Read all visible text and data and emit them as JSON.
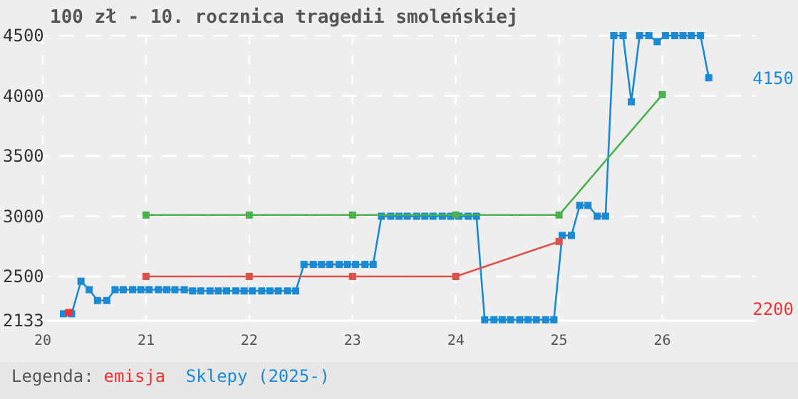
{
  "chart_data": {
    "type": "line",
    "title": "100 zł - 10. rocznica tragedii smoleńskiej",
    "legend_title": "Legenda:",
    "legend": "bottom",
    "grid": true,
    "marker": "square",
    "line_style": "solid",
    "xlim": [
      20,
      26.9
    ],
    "xticks": [
      20,
      21,
      22,
      23,
      24,
      25,
      26
    ],
    "ylim": [
      2133,
      4500
    ],
    "yticks": [
      2133,
      2500,
      3000,
      3500,
      4000,
      4500
    ],
    "annotations": [
      {
        "text": "4150",
        "x": 26.45,
        "y": 4150
      },
      "2200"
    ],
    "series": [
      {
        "name": "emisja",
        "color": "#ee3333",
        "x": [
          20.25
        ],
        "values": [
          2200
        ]
      },
      {
        "color": "#4cb050",
        "x": [
          21,
          22,
          23,
          24,
          25,
          26
        ],
        "values": [
          3010,
          3010,
          3010,
          3010,
          3010,
          4010
        ]
      },
      {
        "color": "#e0504a",
        "x": [
          21,
          22,
          23,
          24,
          25
        ],
        "values": [
          2500,
          2500,
          2500,
          2500,
          2790
        ]
      },
      {
        "name": "Sklepy (2025-)",
        "color": "#1a8ad4",
        "x": [
          20.2,
          20.28,
          20.37,
          20.45,
          20.53,
          20.62,
          20.7,
          20.78,
          20.87,
          20.95,
          21.03,
          21.12,
          21.2,
          21.28,
          21.37,
          21.45,
          21.53,
          21.62,
          21.7,
          21.78,
          21.87,
          21.95,
          22.03,
          22.12,
          22.2,
          22.28,
          22.37,
          22.45,
          22.53,
          22.62,
          22.7,
          22.78,
          22.87,
          22.95,
          23.03,
          23.12,
          23.2,
          23.28,
          23.37,
          23.45,
          23.53,
          23.62,
          23.7,
          23.78,
          23.87,
          23.95,
          24.03,
          24.12,
          24.2,
          24.28,
          24.37,
          24.45,
          24.53,
          24.62,
          24.7,
          24.78,
          24.87,
          24.95,
          25.03,
          25.12,
          25.2,
          25.28,
          25.37,
          25.45,
          25.53,
          25.62,
          25.7,
          25.78,
          25.87,
          25.95,
          26.03,
          26.12,
          26.2,
          26.28,
          26.37,
          26.45
        ],
        "values": [
          2190,
          2190,
          2460,
          2390,
          2300,
          2300,
          2390,
          2390,
          2390,
          2390,
          2390,
          2390,
          2390,
          2390,
          2390,
          2380,
          2380,
          2380,
          2380,
          2380,
          2380,
          2380,
          2380,
          2380,
          2380,
          2380,
          2380,
          2380,
          2600,
          2600,
          2600,
          2600,
          2600,
          2600,
          2600,
          2600,
          2600,
          3000,
          3000,
          3000,
          3000,
          3000,
          3000,
          3000,
          3000,
          3000,
          3000,
          3000,
          3000,
          2140,
          2140,
          2140,
          2140,
          2140,
          2140,
          2140,
          2140,
          2140,
          2840,
          2840,
          3090,
          3090,
          3000,
          3000,
          4500,
          4500,
          3950,
          4500,
          4500,
          4450,
          4500,
          4500,
          4500,
          4500,
          4500,
          4150
        ]
      }
    ]
  }
}
